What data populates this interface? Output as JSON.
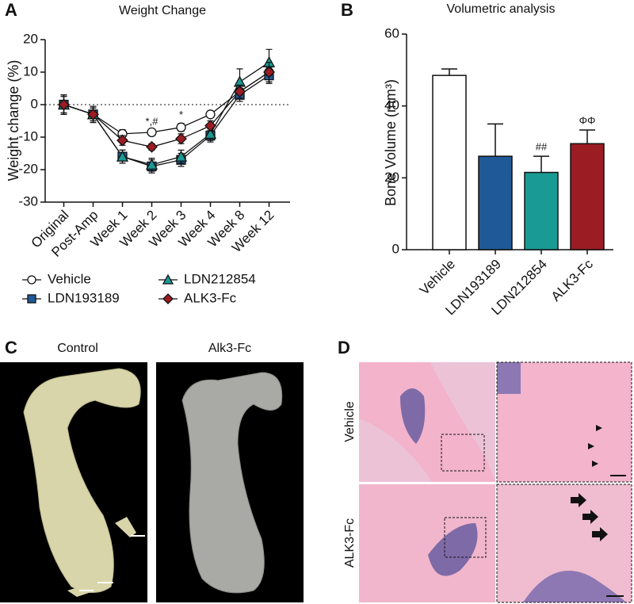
{
  "chart_data": [
    {
      "type": "line",
      "panel": "A",
      "title": "Weight Change",
      "y_label": "Weight change (%)",
      "categories": [
        "Original",
        "Post-Amp",
        "Week 1",
        "Week 2",
        "Week 3",
        "Week 4",
        "Week 8",
        "Week 12"
      ],
      "series": [
        {
          "name": "Vehicle",
          "color": "#ffffff",
          "marker": "circle",
          "values": [
            0,
            -3,
            -9,
            -8.5,
            -7,
            -3,
            4,
            10
          ],
          "errors": [
            3,
            2,
            1.3,
            0.7,
            1.2,
            1,
            2,
            3
          ]
        },
        {
          "name": "LDN193189",
          "color": "#1f5a96",
          "marker": "square",
          "values": [
            0,
            -3,
            -16,
            -19,
            -17,
            -9.5,
            3,
            9
          ],
          "errors": [
            3,
            2.5,
            2,
            2,
            2,
            2,
            2,
            2.5
          ]
        },
        {
          "name": "LDN212854",
          "color": "#1a9a94",
          "marker": "triangle",
          "values": [
            0,
            -3,
            -16,
            -18.5,
            -16,
            -9,
            7,
            13
          ],
          "errors": [
            3,
            2.5,
            2,
            2,
            2,
            2,
            4,
            4
          ]
        },
        {
          "name": "ALK3-Fc",
          "color": "#9b1c22",
          "marker": "diamond",
          "values": [
            0,
            -3,
            -11,
            -13,
            -10.5,
            -6.5,
            4,
            10
          ],
          "errors": [
            2.5,
            2,
            1.5,
            1,
            1.5,
            1.5,
            2,
            3
          ]
        }
      ],
      "annotations": [
        null,
        null,
        null,
        "*,#",
        "*",
        null,
        null,
        null
      ],
      "hline": 0,
      "ylim": [
        -30,
        20
      ],
      "yticks": [
        -30,
        -20,
        -10,
        0,
        10,
        20
      ],
      "legend": "bottom"
    },
    {
      "type": "bar",
      "panel": "B",
      "title": "Volumetric analysis",
      "y_label": "Bone Volume (mm³)",
      "categories": [
        "Vehicle",
        "LDN193189",
        "LDN212854",
        "ALK3-Fc"
      ],
      "values": [
        48.5,
        26,
        21.5,
        29.5
      ],
      "errors": [
        1.8,
        9,
        4.5,
        3.8
      ],
      "colors": [
        "#ffffff",
        "#1f5a96",
        "#1a9a94",
        "#9b1c22"
      ],
      "annotations": [
        null,
        null,
        "##",
        "ΦΦ"
      ],
      "ylim": [
        0,
        60
      ],
      "yticks": [
        0,
        20,
        40,
        60
      ]
    }
  ],
  "panel_c": {
    "label": "C",
    "images": [
      "Control",
      "Alk3-Fc"
    ]
  },
  "panel_d": {
    "label": "D",
    "rows": [
      "Vehicle",
      "ALK3-Fc"
    ]
  }
}
